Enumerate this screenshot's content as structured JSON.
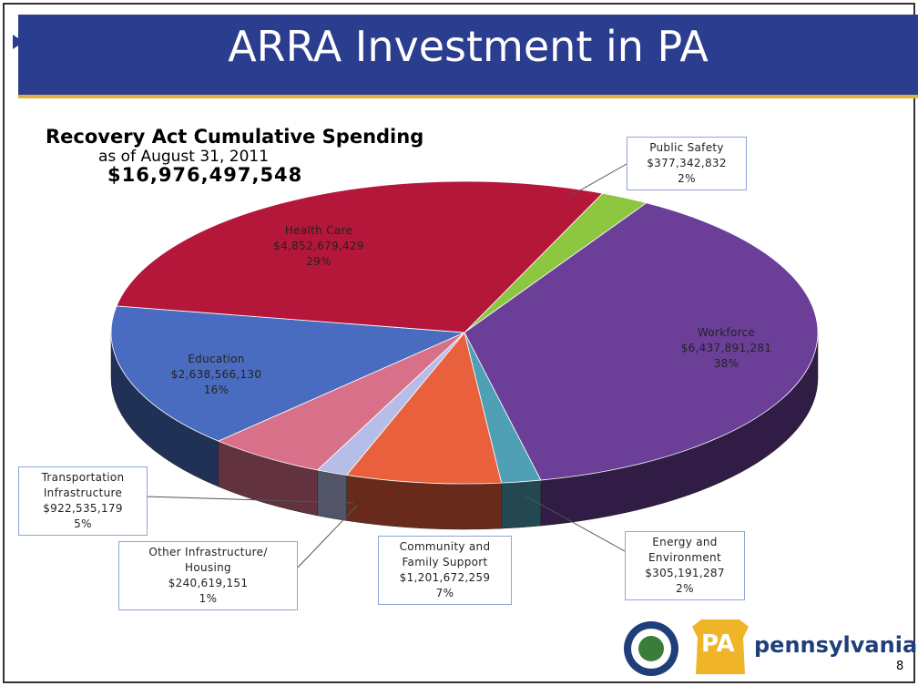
{
  "header": {
    "title": "ARRA Investment in PA"
  },
  "chart_data": {
    "type": "pie",
    "title": "Recovery Act Cumulative Spending",
    "subtitle": "as of August 31, 2011",
    "total_label": "$16,976,497,548",
    "categories": [
      "Public Safety",
      "Workforce",
      "Energy and\nEnvironment",
      "Community and\nFamily Support",
      "Other Infrastructure/\nHousing",
      "Transportation\nInfrastructure",
      "Education",
      "Health Care"
    ],
    "values": [
      377342832,
      6437891281,
      305191287,
      1201672259,
      240619151,
      922535179,
      2638566130,
      4852679429
    ],
    "value_labels": [
      "$377,342,832",
      "$6,437,891,281",
      "$305,191,287",
      "$1,201,672,259",
      "$240,619,151",
      "$922,535,179",
      "$2,638,566,130",
      "$4,852,679,429"
    ],
    "percents": [
      2,
      38,
      2,
      7,
      1,
      5,
      16,
      29
    ],
    "percent_labels": [
      "2%",
      "38%",
      "2%",
      "7%",
      "1%",
      "5%",
      "16%",
      "29%"
    ],
    "colors": [
      "#8dc63f",
      "#6b3f98",
      "#4f9fb5",
      "#e8603c",
      "#b6bde6",
      "#d9708a",
      "#4a6cc0",
      "#b5173a"
    ]
  },
  "footer": {
    "logo": "PA",
    "brand": "pennsylvania",
    "page": "8"
  }
}
